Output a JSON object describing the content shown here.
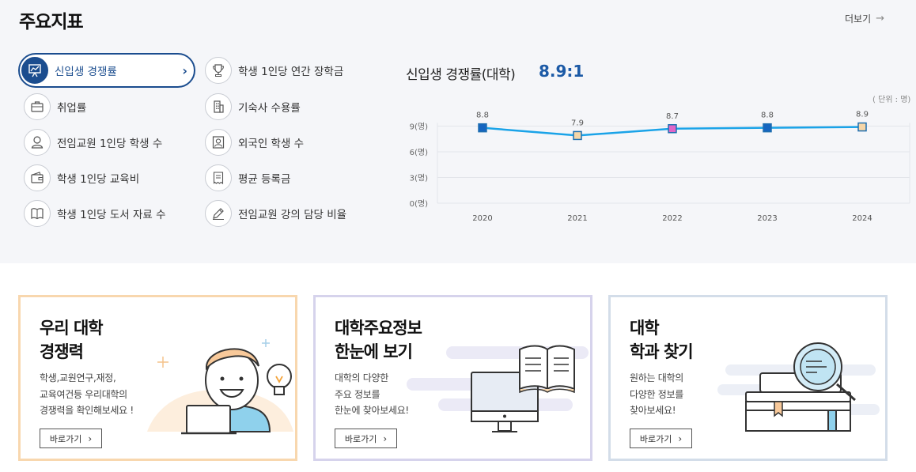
{
  "page_title": "주요지표",
  "more_label": "더보기",
  "indicators": [
    {
      "label": "신입생 경쟁률",
      "icon": "presentation-chart-icon",
      "active": true
    },
    {
      "label": "취업률",
      "icon": "briefcase-icon",
      "active": false
    },
    {
      "label": "전임교원 1인당 학생 수",
      "icon": "person-icon",
      "active": false
    },
    {
      "label": "학생 1인당 교육비",
      "icon": "wallet-icon",
      "active": false
    },
    {
      "label": "학생 1인당 도서 자료 수",
      "icon": "book-icon",
      "active": false
    },
    {
      "label": "학생 1인당 연간 장학금",
      "icon": "trophy-icon",
      "active": false
    },
    {
      "label": "기숙사 수용률",
      "icon": "building-icon",
      "active": false
    },
    {
      "label": "외국인 학생 수",
      "icon": "id-photo-icon",
      "active": false
    },
    {
      "label": "평균 등록금",
      "icon": "receipt-icon",
      "active": false
    },
    {
      "label": "전임교원 강의 담당 비율",
      "icon": "pencil-icon",
      "active": false
    }
  ],
  "chart": {
    "title": "신입생 경쟁률(대학)",
    "value": "8.9:1",
    "unit": "( 단위 : 명)"
  },
  "chart_data": {
    "type": "line",
    "x": [
      "2020",
      "2021",
      "2022",
      "2023",
      "2024"
    ],
    "series": [
      {
        "values": [
          8.8,
          7.9,
          8.7,
          8.8,
          8.9
        ],
        "data_labels": [
          "8.8",
          "7.9",
          "8.7",
          "8.8",
          "8.9"
        ]
      }
    ],
    "ytick_labels": [
      "0(명)",
      "3(명)",
      "6(명)",
      "9(명)"
    ],
    "yticks": [
      0,
      3,
      6,
      9
    ],
    "ylim": [
      0,
      12
    ],
    "grid": true,
    "colors": {
      "line": "#1aa3e8",
      "marker_2020": "#1565c0",
      "marker_2021": "#f5d6a8",
      "marker_2022": "#e066c8",
      "marker_2023": "#1565c0",
      "marker_2024": "#f5d6a8"
    }
  },
  "cards": [
    {
      "title": [
        "우리 대학",
        "경쟁력"
      ],
      "desc": [
        "학생,교원연구,재정,",
        "교육여건등 우리대학의",
        "경쟁력을 확인해보세요 !"
      ],
      "button": "바로가기",
      "border_color": "#f8d7ae",
      "icon": "student-with-laptop-illustration"
    },
    {
      "title": [
        "대학주요정보",
        "한눈에 보기"
      ],
      "desc": [
        "대학의 다양한",
        "주요 정보를",
        "한눈에 찾아보세요!"
      ],
      "button": "바로가기",
      "border_color": "#d6d3ec",
      "icon": "monitor-book-illustration"
    },
    {
      "title": [
        "대학",
        "학과 찾기"
      ],
      "desc": [
        "원하는 대학의",
        "다양한 정보를",
        "찾아보세요!"
      ],
      "button": "바로가기",
      "border_color": "#d3dde9",
      "icon": "books-magnifier-illustration"
    }
  ]
}
